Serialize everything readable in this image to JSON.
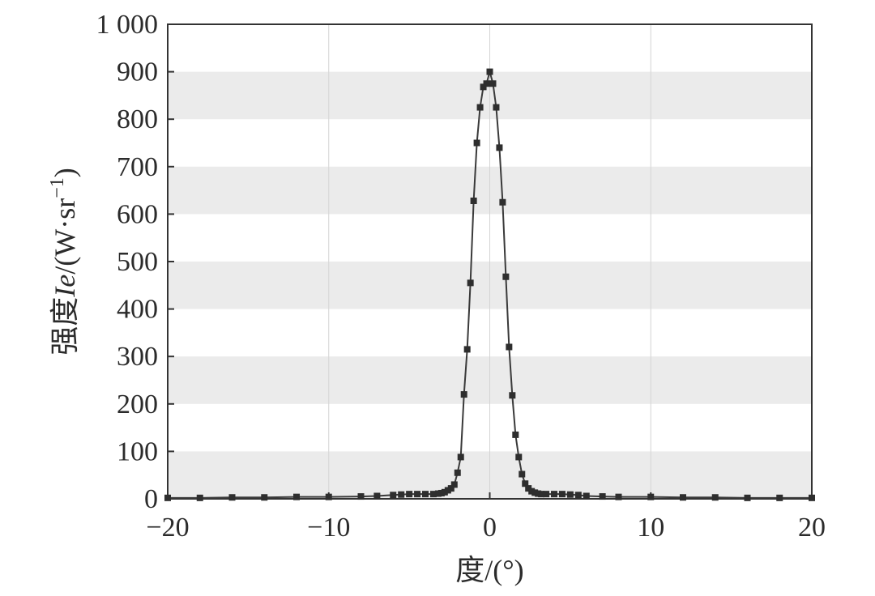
{
  "chart_data": {
    "type": "line",
    "title": "",
    "xlabel": "度/(°)",
    "ylabel": "强度Ie/(W·sr⁻¹)",
    "ylabel_parts": {
      "prefix": "强度",
      "italic": "Ie",
      "unit_open": "/(W·sr",
      "superscript": "−1",
      "unit_close": ")"
    },
    "xlim": [
      -20,
      20
    ],
    "ylim": [
      0,
      1000
    ],
    "xticks": [
      -20,
      -10,
      0,
      10,
      20
    ],
    "xtick_labels": [
      "−20",
      "−10",
      "0",
      "10",
      "20"
    ],
    "yticks": [
      0,
      100,
      200,
      300,
      400,
      500,
      600,
      700,
      800,
      900,
      1000
    ],
    "ytick_labels": [
      "0",
      "100",
      "200",
      "300",
      "400",
      "500",
      "600",
      "700",
      "800",
      "900",
      "1 000"
    ],
    "grid": true,
    "background_bands": "alternating grey horizontal bands",
    "legend": "none",
    "colors": {
      "line": "#3a3a3a",
      "marker": "#2e2e2e",
      "band": "#ebebeb",
      "grid": "#d4d4d4",
      "axis": "#333333"
    },
    "series": [
      {
        "marker": "square",
        "x": [
          -20,
          -18,
          -16,
          -14,
          -12,
          -10,
          -8,
          -7,
          -6,
          -5.5,
          -5,
          -4.5,
          -4,
          -3.5,
          -3.2,
          -3.0,
          -2.8,
          -2.6,
          -2.4,
          -2.2,
          -2.0,
          -1.8,
          -1.6,
          -1.4,
          -1.2,
          -1.0,
          -0.8,
          -0.6,
          -0.4,
          -0.2,
          0.0,
          0.2,
          0.4,
          0.6,
          0.8,
          1.0,
          1.2,
          1.4,
          1.6,
          1.8,
          2.0,
          2.2,
          2.4,
          2.6,
          2.8,
          3.0,
          3.2,
          3.5,
          4.0,
          4.5,
          5.0,
          5.5,
          6.0,
          7.0,
          8.0,
          10,
          12,
          14,
          16,
          18,
          20
        ],
        "y": [
          2,
          2,
          3,
          3,
          4,
          4,
          5,
          6,
          8,
          9,
          10,
          10,
          10,
          10,
          11,
          12,
          14,
          18,
          22,
          30,
          55,
          88,
          220,
          315,
          455,
          628,
          750,
          825,
          868,
          875,
          900,
          875,
          825,
          740,
          625,
          468,
          320,
          218,
          135,
          88,
          52,
          32,
          22,
          16,
          13,
          11,
          10,
          10,
          10,
          10,
          9,
          8,
          6,
          5,
          4,
          4,
          3,
          3,
          2,
          2,
          2
        ]
      }
    ]
  }
}
